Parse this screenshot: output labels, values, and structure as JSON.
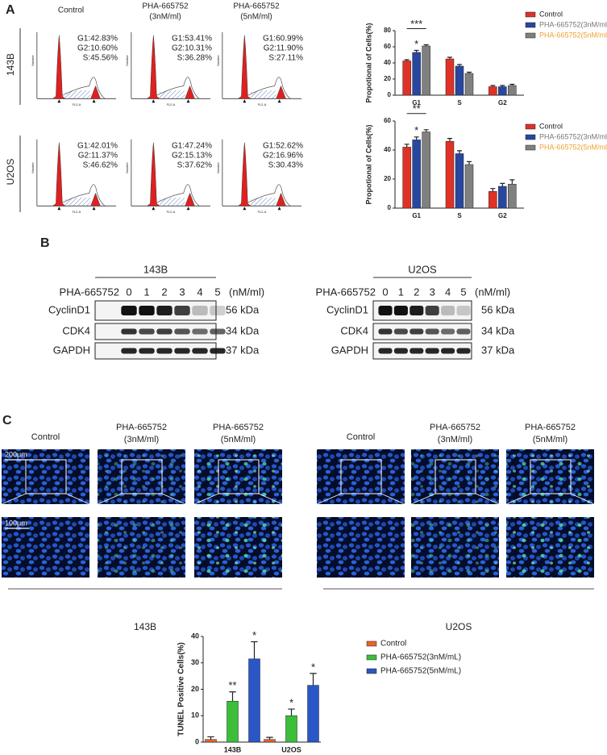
{
  "panel_labels": [
    "A",
    "B",
    "C"
  ],
  "panel_a": {
    "columns": [
      [
        "Control"
      ],
      [
        "PHA-665752",
        "(3nM/ml)"
      ],
      [
        "PHA-665752",
        "(5nM/ml)"
      ]
    ],
    "rows": [
      {
        "label": "143B",
        "stats": [
          [
            "G1:42.83%",
            "G2:10.60%",
            "S:45.56%"
          ],
          [
            "G1:53.41%",
            "G2:10.31%",
            "S:36.28%"
          ],
          [
            "G1:60.99%",
            "G2:11.90%",
            "S:27.11%"
          ]
        ]
      },
      {
        "label": "U2OS",
        "stats": [
          [
            "G1:42.01%",
            "G2:11.37%",
            "S:46.62%"
          ],
          [
            "G1:47.24%",
            "G2:15.13%",
            "S:37.62%"
          ],
          [
            "G1:52.62%",
            "G2:16.96%",
            "S:30.43%"
          ]
        ]
      }
    ]
  },
  "panel_b": {
    "blots": [
      {
        "title": "143B",
        "treatment": "PHA-665752",
        "lanes": [
          "0",
          "1",
          "2",
          "3",
          "4",
          "5"
        ],
        "unit": "(nM/ml)",
        "proteins": [
          "CyclinD1",
          "CDK4",
          "GAPDH"
        ],
        "sizes": [
          "56 kDa",
          "34 kDa",
          "37 kDa"
        ]
      },
      {
        "title": "U2OS",
        "treatment": "PHA-665752",
        "lanes": [
          "0",
          "1",
          "2",
          "3",
          "4",
          "5"
        ],
        "unit": "(nM/ml)",
        "proteins": [
          "CyclinD1",
          "CDK4",
          "GAPDH"
        ],
        "sizes": [
          "56 kDa",
          "34 kDa",
          "37 kDa"
        ]
      }
    ]
  },
  "panel_c": {
    "groups": [
      {
        "label": "143B",
        "columns": [
          [
            "Control"
          ],
          [
            "PHA-665752",
            "(3nM/ml)"
          ],
          [
            "PHA-665752",
            "(5nM/ml)"
          ]
        ],
        "scale_bars": [
          "200μm",
          "100μm"
        ]
      },
      {
        "label": "U2OS",
        "columns": [
          [
            "Control"
          ],
          [
            "PHA-665752",
            "(3nM/ml)"
          ],
          [
            "PHA-665752",
            "(5nM/ml)"
          ]
        ]
      }
    ]
  },
  "chart_data": [
    {
      "type": "bar",
      "ylabel": "Propotional of Cells(%)",
      "categories": [
        "G1",
        "S",
        "G2"
      ],
      "ylim": [
        0,
        80
      ],
      "yticks": [
        0,
        20,
        40,
        60,
        80
      ],
      "annotations": [
        "***"
      ],
      "series": [
        {
          "name": "Control",
          "color": "#e03126",
          "label_color": "#222222",
          "values": [
            42.5,
            45,
            10.5
          ],
          "errors": [
            1.5,
            2,
            1.5
          ]
        },
        {
          "name": "PHA-665752(3nM/ml)",
          "color": "#2747a0",
          "label_color": "#777777",
          "values": [
            53,
            36,
            10.5
          ],
          "errors": [
            2.5,
            2,
            1.5
          ],
          "significance": [
            "*",
            null,
            null
          ]
        },
        {
          "name": "PHA-665752(5nM/ml)",
          "color": "#808080",
          "label_color": "#f0a030",
          "values": [
            61,
            27,
            12
          ],
          "errors": [
            1.5,
            1.5,
            1.5
          ]
        }
      ]
    },
    {
      "type": "bar",
      "ylabel": "Propotional of Cells(%)",
      "categories": [
        "G1",
        "S",
        "G2"
      ],
      "ylim": [
        0,
        60
      ],
      "yticks": [
        0,
        20,
        40,
        60
      ],
      "annotations": [
        "**"
      ],
      "series": [
        {
          "name": "Control",
          "color": "#e03126",
          "label_color": "#222222",
          "values": [
            42,
            46,
            11.5
          ],
          "errors": [
            2,
            2,
            2
          ]
        },
        {
          "name": "PHA-665752(3nM/ml)",
          "color": "#2747a0",
          "label_color": "#777777",
          "values": [
            47,
            37.5,
            15
          ],
          "errors": [
            2,
            2,
            2
          ],
          "significance": [
            "*",
            null,
            null
          ]
        },
        {
          "name": "PHA-665752(5nM/ml)",
          "color": "#808080",
          "label_color": "#f0a030",
          "values": [
            52.5,
            30,
            16.5
          ],
          "errors": [
            1.5,
            2,
            3
          ]
        }
      ]
    },
    {
      "type": "bar",
      "ylabel": "TUNEL Positive Cells(%)",
      "categories": [
        "143B",
        "U2OS"
      ],
      "ylim": [
        0,
        40
      ],
      "yticks": [
        0,
        10,
        20,
        30,
        40
      ],
      "series": [
        {
          "name": "Control",
          "color": "#e8622a",
          "values": [
            1,
            1
          ],
          "errors": [
            1,
            0.8
          ]
        },
        {
          "name": "PHA-665752(3nM/mL)",
          "color": "#3bbf3b",
          "values": [
            15.5,
            10
          ],
          "errors": [
            3.5,
            2.5
          ],
          "significance": [
            "**",
            "*"
          ]
        },
        {
          "name": "PHA-665752(5nM/mL)",
          "color": "#2a56c8",
          "values": [
            31.5,
            21.5
          ],
          "errors": [
            6.5,
            4.5
          ],
          "significance": [
            "*",
            "*"
          ]
        }
      ]
    }
  ]
}
